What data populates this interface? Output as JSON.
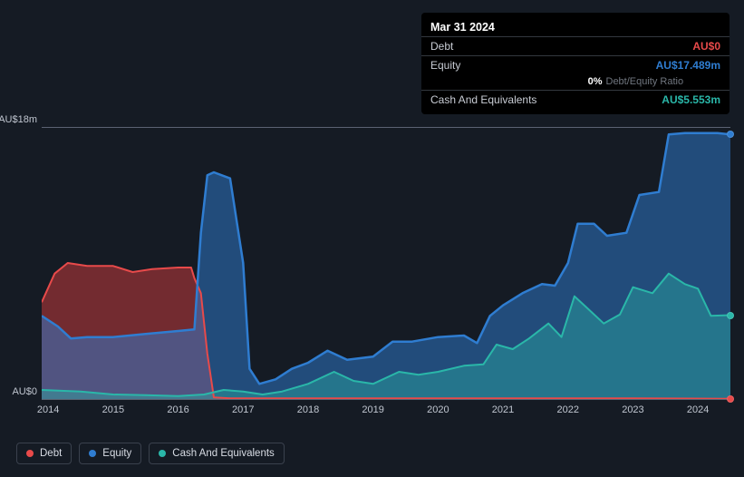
{
  "tooltip": {
    "date": "Mar 31 2024",
    "rows": [
      {
        "label": "Debt",
        "value": "AU$0",
        "color": "#e84a4a"
      },
      {
        "label": "Equity",
        "value": "AU$17.489m",
        "color": "#2f7dd1",
        "sub_pct": "0%",
        "sub_label": "Debt/Equity Ratio"
      },
      {
        "label": "Cash And Equivalents",
        "value": "AU$5.553m",
        "color": "#2ab7a9"
      }
    ]
  },
  "chart": {
    "type": "area",
    "background_color": "#151b24",
    "grid_color": "#5a6272",
    "ylim": [
      0,
      18
    ],
    "y_ticks": [
      {
        "v": 18,
        "label": "AU$18m"
      },
      {
        "v": 0,
        "label": "AU$0"
      }
    ],
    "xlim": [
      2013.9,
      2024.5
    ],
    "x_ticks": [
      2014,
      2015,
      2016,
      2017,
      2018,
      2019,
      2020,
      2021,
      2022,
      2023,
      2024
    ],
    "series": [
      {
        "name": "Debt",
        "stroke": "#e84a4a",
        "fill": "rgba(210,60,60,0.50)",
        "stroke_width": 2,
        "data": [
          [
            2013.9,
            6.4
          ],
          [
            2014.1,
            8.3
          ],
          [
            2014.3,
            9.0
          ],
          [
            2014.6,
            8.8
          ],
          [
            2015.0,
            8.8
          ],
          [
            2015.3,
            8.4
          ],
          [
            2015.6,
            8.6
          ],
          [
            2016.0,
            8.7
          ],
          [
            2016.2,
            8.7
          ],
          [
            2016.25,
            8.0
          ],
          [
            2016.35,
            7.0
          ],
          [
            2016.45,
            3.0
          ],
          [
            2016.55,
            0.1
          ],
          [
            2016.8,
            0.05
          ],
          [
            2017.5,
            0.05
          ],
          [
            2019.0,
            0.05
          ],
          [
            2021.0,
            0.05
          ],
          [
            2023.0,
            0.05
          ],
          [
            2024.5,
            0.02
          ]
        ]
      },
      {
        "name": "Equity",
        "stroke": "#2f7dd1",
        "fill": "rgba(47,125,209,0.50)",
        "stroke_width": 2.5,
        "data": [
          [
            2013.9,
            5.5
          ],
          [
            2014.15,
            4.8
          ],
          [
            2014.35,
            4.0
          ],
          [
            2014.6,
            4.1
          ],
          [
            2015.0,
            4.1
          ],
          [
            2015.5,
            4.3
          ],
          [
            2016.0,
            4.5
          ],
          [
            2016.25,
            4.6
          ],
          [
            2016.35,
            11.0
          ],
          [
            2016.45,
            14.8
          ],
          [
            2016.55,
            15.0
          ],
          [
            2016.8,
            14.6
          ],
          [
            2017.0,
            9.0
          ],
          [
            2017.1,
            2.0
          ],
          [
            2017.25,
            1.0
          ],
          [
            2017.5,
            1.3
          ],
          [
            2017.75,
            2.0
          ],
          [
            2018.0,
            2.4
          ],
          [
            2018.3,
            3.2
          ],
          [
            2018.6,
            2.6
          ],
          [
            2019.0,
            2.8
          ],
          [
            2019.3,
            3.8
          ],
          [
            2019.6,
            3.8
          ],
          [
            2020.0,
            4.1
          ],
          [
            2020.4,
            4.2
          ],
          [
            2020.6,
            3.7
          ],
          [
            2020.8,
            5.5
          ],
          [
            2021.0,
            6.2
          ],
          [
            2021.3,
            7.0
          ],
          [
            2021.6,
            7.6
          ],
          [
            2021.8,
            7.5
          ],
          [
            2022.0,
            9.0
          ],
          [
            2022.15,
            11.6
          ],
          [
            2022.4,
            11.6
          ],
          [
            2022.6,
            10.8
          ],
          [
            2022.9,
            11.0
          ],
          [
            2023.1,
            13.5
          ],
          [
            2023.4,
            13.7
          ],
          [
            2023.55,
            17.5
          ],
          [
            2023.8,
            17.6
          ],
          [
            2024.3,
            17.6
          ],
          [
            2024.5,
            17.5
          ]
        ]
      },
      {
        "name": "Cash And Equivalents",
        "stroke": "#2ab7a9",
        "fill": "rgba(42,183,169,0.38)",
        "stroke_width": 2,
        "data": [
          [
            2013.9,
            0.6
          ],
          [
            2014.5,
            0.5
          ],
          [
            2015.0,
            0.3
          ],
          [
            2015.5,
            0.25
          ],
          [
            2016.0,
            0.2
          ],
          [
            2016.4,
            0.3
          ],
          [
            2016.7,
            0.6
          ],
          [
            2017.0,
            0.5
          ],
          [
            2017.3,
            0.3
          ],
          [
            2017.6,
            0.5
          ],
          [
            2018.0,
            1.0
          ],
          [
            2018.4,
            1.8
          ],
          [
            2018.7,
            1.2
          ],
          [
            2019.0,
            1.0
          ],
          [
            2019.4,
            1.8
          ],
          [
            2019.7,
            1.6
          ],
          [
            2020.0,
            1.8
          ],
          [
            2020.4,
            2.2
          ],
          [
            2020.7,
            2.3
          ],
          [
            2020.9,
            3.6
          ],
          [
            2021.15,
            3.3
          ],
          [
            2021.4,
            4.0
          ],
          [
            2021.7,
            5.0
          ],
          [
            2021.9,
            4.1
          ],
          [
            2022.1,
            6.8
          ],
          [
            2022.3,
            6.0
          ],
          [
            2022.55,
            5.0
          ],
          [
            2022.8,
            5.6
          ],
          [
            2023.0,
            7.4
          ],
          [
            2023.3,
            7.0
          ],
          [
            2023.55,
            8.3
          ],
          [
            2023.8,
            7.6
          ],
          [
            2024.0,
            7.3
          ],
          [
            2024.2,
            5.5
          ],
          [
            2024.5,
            5.55
          ]
        ]
      }
    ],
    "legend": [
      {
        "label": "Debt",
        "color": "#e84a4a"
      },
      {
        "label": "Equity",
        "color": "#2f7dd1"
      },
      {
        "label": "Cash And Equivalents",
        "color": "#2ab7a9"
      }
    ]
  }
}
